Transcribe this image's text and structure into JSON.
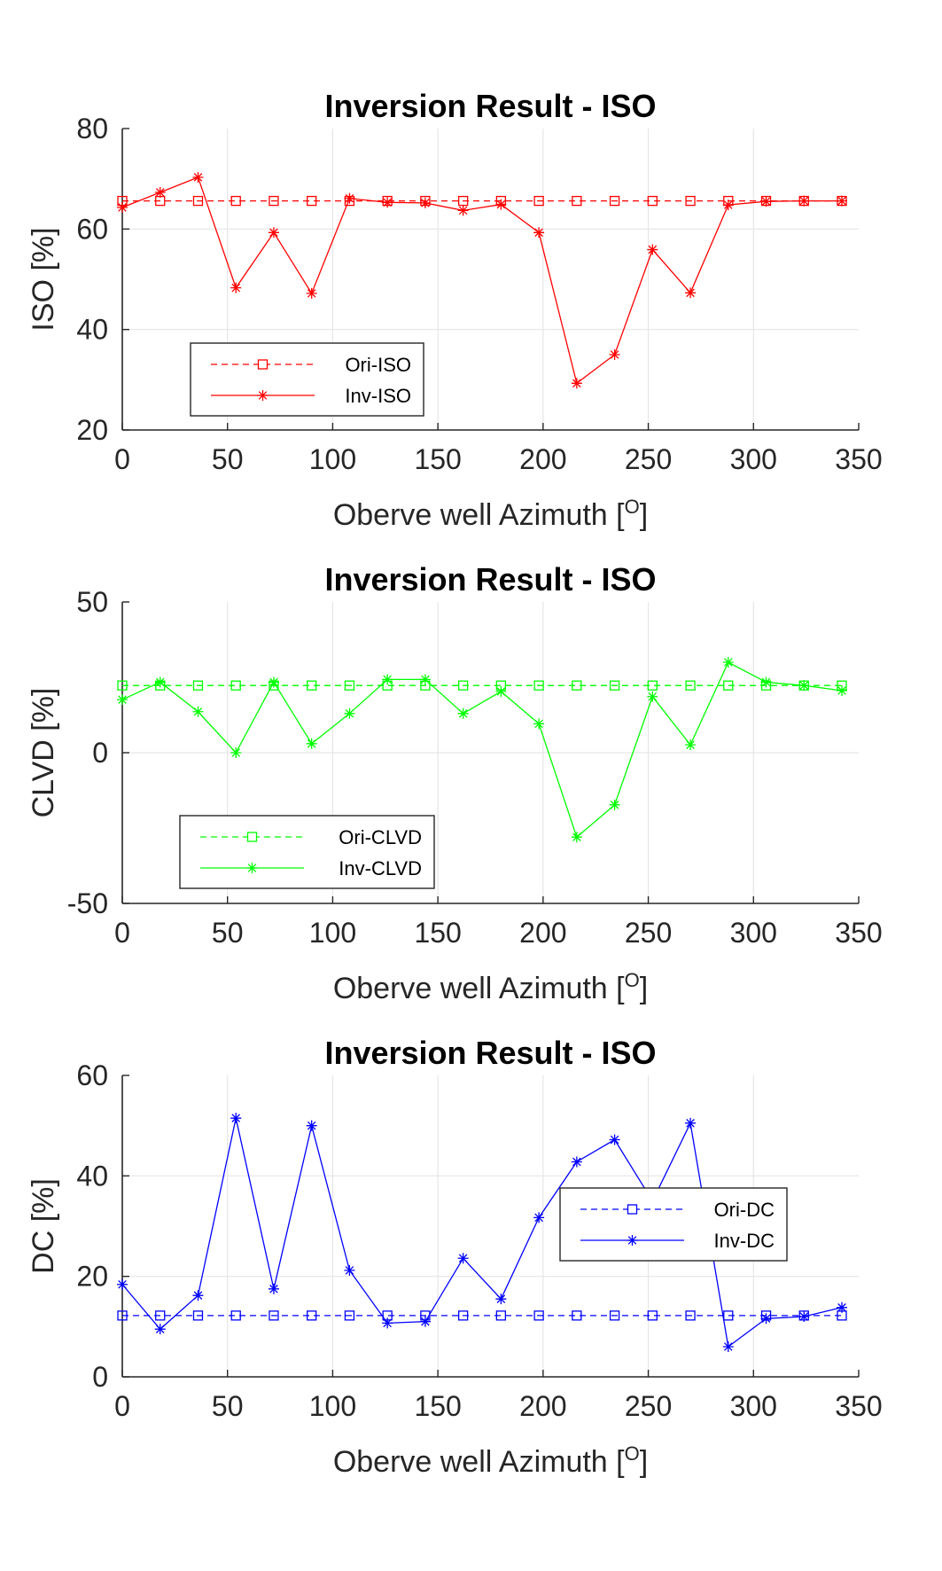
{
  "chart_data": [
    {
      "type": "line",
      "title": "Inversion Result - ISO",
      "xlabel": "Oberve well Azimuth [",
      "xlabel_sup": "O",
      "xlabel_end": "]",
      "ylabel": "ISO [%]",
      "xlim": [
        0,
        350
      ],
      "ylim": [
        20,
        80
      ],
      "xticks": [
        0,
        50,
        100,
        150,
        200,
        250,
        300,
        350
      ],
      "yticks": [
        20,
        40,
        60,
        80
      ],
      "grid": true,
      "legend_position": "lower-left",
      "color": "#ff0000",
      "x": [
        0,
        18,
        36,
        54,
        72,
        90,
        108,
        126,
        144,
        162,
        180,
        198,
        216,
        234,
        252,
        270,
        288,
        306,
        324,
        342
      ],
      "series": [
        {
          "name": "Ori-ISO",
          "style": "dashed-square",
          "values": [
            65.6,
            65.6,
            65.6,
            65.6,
            65.6,
            65.6,
            65.6,
            65.6,
            65.6,
            65.6,
            65.6,
            65.6,
            65.6,
            65.6,
            65.6,
            65.6,
            65.6,
            65.6,
            65.6,
            65.6
          ]
        },
        {
          "name": "Inv-ISO",
          "style": "solid-star",
          "values": [
            64.3,
            67.3,
            70.3,
            48.3,
            59.3,
            47.2,
            66.1,
            65.3,
            65.2,
            63.7,
            64.9,
            59.3,
            29.3,
            35.0,
            55.9,
            47.3,
            64.8,
            65.5,
            65.6,
            65.6
          ]
        }
      ]
    },
    {
      "type": "line",
      "title": "Inversion Result - ISO",
      "xlabel": "Oberve well Azimuth [",
      "xlabel_sup": "O",
      "xlabel_end": "]",
      "ylabel": "CLVD [%]",
      "xlim": [
        0,
        350
      ],
      "ylim": [
        -50,
        50
      ],
      "xticks": [
        0,
        50,
        100,
        150,
        200,
        250,
        300,
        350
      ],
      "yticks": [
        -50,
        0,
        50
      ],
      "grid": true,
      "legend_position": "lower-left",
      "color": "#00ff00",
      "x": [
        0,
        18,
        36,
        54,
        72,
        90,
        108,
        126,
        144,
        162,
        180,
        198,
        216,
        234,
        252,
        270,
        288,
        306,
        324,
        342
      ],
      "series": [
        {
          "name": "Ori-CLVD",
          "style": "dashed-square",
          "values": [
            22.3,
            22.3,
            22.3,
            22.3,
            22.3,
            22.3,
            22.3,
            22.3,
            22.3,
            22.3,
            22.3,
            22.3,
            22.3,
            22.3,
            22.3,
            22.3,
            22.3,
            22.3,
            22.3,
            22.3
          ]
        },
        {
          "name": "Inv-CLVD",
          "style": "solid-star",
          "values": [
            17.6,
            23.4,
            13.6,
            0.0,
            23.4,
            3.0,
            13.0,
            24.3,
            24.3,
            13.0,
            20.3,
            9.6,
            -28.0,
            -17.3,
            18.6,
            2.6,
            30.0,
            23.4,
            22.3,
            20.6
          ]
        }
      ]
    },
    {
      "type": "line",
      "title": "Inversion Result - ISO",
      "xlabel": "Oberve well Azimuth [",
      "xlabel_sup": "O",
      "xlabel_end": "]",
      "ylabel": "DC [%]",
      "xlim": [
        0,
        350
      ],
      "ylim": [
        0,
        60
      ],
      "xticks": [
        0,
        50,
        100,
        150,
        200,
        250,
        300,
        350
      ],
      "yticks": [
        0,
        20,
        40,
        60
      ],
      "grid": true,
      "legend_position": "right",
      "color": "#0000ff",
      "x": [
        0,
        18,
        36,
        54,
        72,
        90,
        108,
        126,
        144,
        162,
        180,
        198,
        216,
        234,
        252,
        270,
        288,
        306,
        324,
        342
      ],
      "series": [
        {
          "name": "Ori-DC",
          "style": "dashed-square",
          "values": [
            12.2,
            12.2,
            12.2,
            12.2,
            12.2,
            12.2,
            12.2,
            12.2,
            12.2,
            12.2,
            12.2,
            12.2,
            12.2,
            12.2,
            12.2,
            12.2,
            12.2,
            12.2,
            12.2,
            12.2
          ]
        },
        {
          "name": "Inv-DC",
          "style": "solid-star",
          "values": [
            18.4,
            9.5,
            16.2,
            51.5,
            17.5,
            50.0,
            21.2,
            10.7,
            11.0,
            23.6,
            15.5,
            31.7,
            42.8,
            47.2,
            35.0,
            50.5,
            6.0,
            11.6,
            12.0,
            13.8
          ]
        }
      ]
    }
  ]
}
